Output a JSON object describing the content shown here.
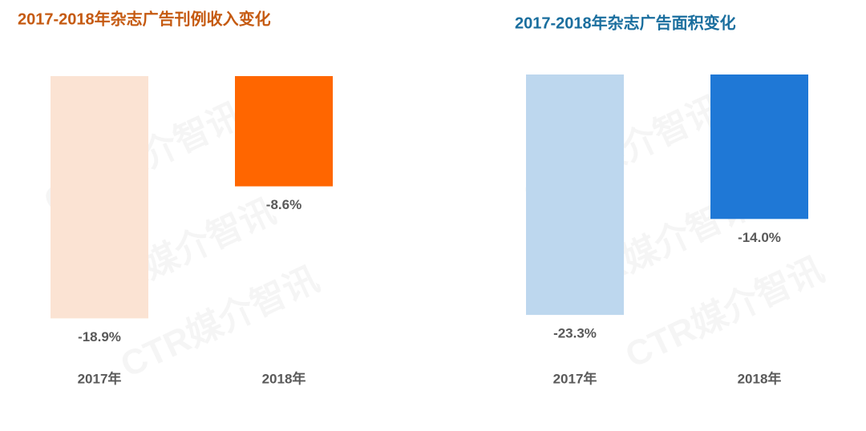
{
  "watermark": "CTR媒介智讯",
  "chart_data": [
    {
      "type": "bar",
      "title": "2017-2018年杂志广告刊例收入变化",
      "title_color": "#c55a11",
      "categories": [
        "2017年",
        "2018年"
      ],
      "values": [
        -18.9,
        -8.6
      ],
      "value_labels": [
        "-18.9%",
        "-8.6%"
      ],
      "colors": [
        "#fbe3d3",
        "#ff6600"
      ],
      "ylim": [
        -20,
        0
      ]
    },
    {
      "type": "bar",
      "title": "2017-2018年杂志广告面积变化",
      "title_color": "#1a6e9e",
      "categories": [
        "2017年",
        "2018年"
      ],
      "values": [
        -23.3,
        -14.0
      ],
      "value_labels": [
        "-23.3%",
        "-14.0%"
      ],
      "colors": [
        "#bdd7ee",
        "#1f78d6"
      ],
      "ylim": [
        -25,
        0
      ]
    }
  ]
}
